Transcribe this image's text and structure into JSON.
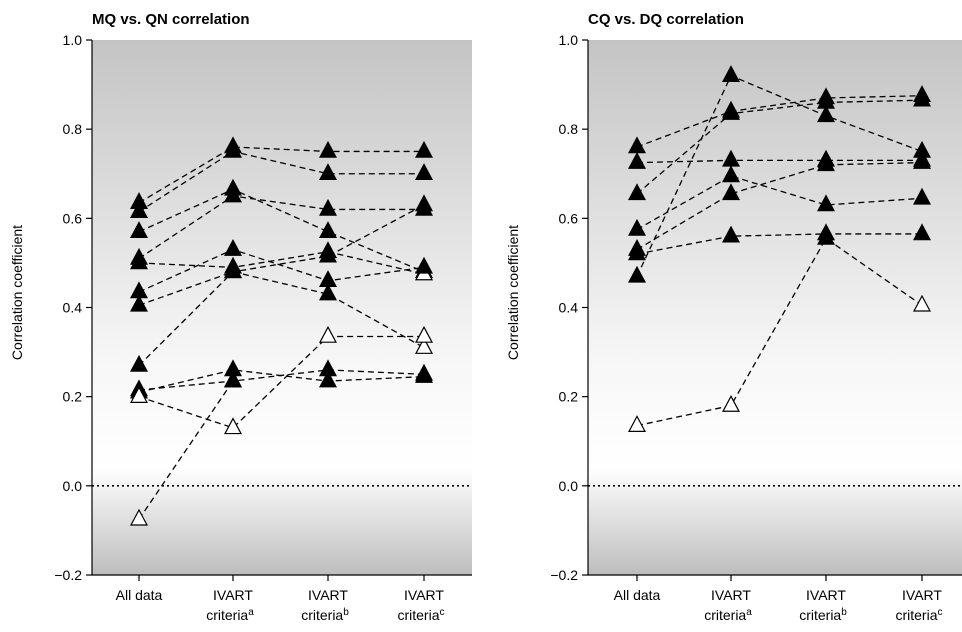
{
  "chart_data": [
    {
      "type": "line",
      "title": "MQ vs. QN correlation",
      "ylabel": "Correlation coefficient",
      "xlabel": "",
      "ylim": [
        -0.2,
        1.0
      ],
      "yticks": [
        "1.0",
        "0.8",
        "0.6",
        "0.4",
        "0.2",
        "0.0",
        "−0.2"
      ],
      "ytick_values": [
        1.0,
        0.8,
        0.6,
        0.4,
        0.2,
        0.0,
        -0.2
      ],
      "reference_line": 0.0,
      "categories": [
        {
          "line1": "All data",
          "line2": "",
          "sup": ""
        },
        {
          "line1": "IVART",
          "line2": "criteria",
          "sup": "a"
        },
        {
          "line1": "IVART",
          "line2": "criteria",
          "sup": "b"
        },
        {
          "line1": "IVART",
          "line2": "criteria",
          "sup": "c"
        }
      ],
      "series": [
        {
          "values": [
            0.635,
            0.76,
            0.75,
            0.75
          ],
          "filled": [
            true,
            true,
            true,
            true
          ]
        },
        {
          "values": [
            0.615,
            0.75,
            0.7,
            0.7
          ],
          "filled": [
            true,
            true,
            true,
            true
          ]
        },
        {
          "values": [
            0.57,
            0.665,
            0.57,
            0.48
          ],
          "filled": [
            true,
            true,
            true,
            true
          ]
        },
        {
          "values": [
            0.51,
            0.65,
            0.62,
            0.62
          ],
          "filled": [
            true,
            true,
            true,
            true
          ]
        },
        {
          "values": [
            0.5,
            0.49,
            0.525,
            0.475
          ],
          "filled": [
            true,
            true,
            true,
            false
          ]
        },
        {
          "values": [
            0.435,
            0.53,
            0.46,
            0.49
          ],
          "filled": [
            true,
            true,
            true,
            true
          ]
        },
        {
          "values": [
            0.405,
            0.48,
            0.43,
            0.31
          ],
          "filled": [
            true,
            true,
            true,
            false
          ]
        },
        {
          "values": [
            0.27,
            0.48,
            0.515,
            0.63
          ],
          "filled": [
            true,
            true,
            true,
            true
          ]
        },
        {
          "values": [
            0.215,
            0.235,
            0.26,
            0.25
          ],
          "filled": [
            true,
            true,
            true,
            true
          ]
        },
        {
          "values": [
            0.21,
            0.26,
            0.235,
            0.245
          ],
          "filled": [
            true,
            true,
            true,
            true
          ]
        },
        {
          "values": [
            0.2,
            0.13,
            0.335,
            0.335
          ],
          "filled": [
            false,
            false,
            false,
            false
          ]
        },
        {
          "values": [
            -0.075,
            0.235,
            null,
            null
          ],
          "filled": [
            false,
            true,
            false,
            false
          ]
        }
      ]
    },
    {
      "type": "line",
      "title": "CQ vs. DQ correlation",
      "ylabel": "Correlation coefficient",
      "xlabel": "",
      "ylim": [
        -0.2,
        1.0
      ],
      "yticks": [
        "1.0",
        "0.8",
        "0.6",
        "0.4",
        "0.2",
        "0.0",
        "−0.2"
      ],
      "ytick_values": [
        1.0,
        0.8,
        0.6,
        0.4,
        0.2,
        0.0,
        -0.2
      ],
      "reference_line": 0.0,
      "categories": [
        {
          "line1": "All data",
          "line2": "",
          "sup": ""
        },
        {
          "line1": "IVART",
          "line2": "criteria",
          "sup": "a"
        },
        {
          "line1": "IVART",
          "line2": "criteria",
          "sup": "b"
        },
        {
          "line1": "IVART",
          "line2": "criteria",
          "sup": "c"
        }
      ],
      "series": [
        {
          "values": [
            0.76,
            0.84,
            0.87,
            0.875
          ],
          "filled": [
            true,
            true,
            true,
            true
          ]
        },
        {
          "values": [
            0.725,
            0.73,
            0.73,
            0.73
          ],
          "filled": [
            true,
            true,
            true,
            true
          ]
        },
        {
          "values": [
            0.655,
            0.835,
            0.86,
            0.865
          ],
          "filled": [
            true,
            true,
            true,
            true
          ]
        },
        {
          "values": [
            0.575,
            0.695,
            0.63,
            0.645
          ],
          "filled": [
            true,
            true,
            true,
            true
          ]
        },
        {
          "values": [
            0.53,
            0.655,
            0.72,
            0.725
          ],
          "filled": [
            true,
            true,
            true,
            true
          ]
        },
        {
          "values": [
            0.52,
            0.56,
            0.565,
            0.565
          ],
          "filled": [
            true,
            true,
            true,
            true
          ]
        },
        {
          "values": [
            0.47,
            0.92,
            0.83,
            0.75
          ],
          "filled": [
            true,
            true,
            true,
            true
          ]
        },
        {
          "values": [
            0.135,
            0.18,
            0.555,
            0.405
          ],
          "filled": [
            false,
            false,
            true,
            false
          ]
        }
      ]
    }
  ]
}
